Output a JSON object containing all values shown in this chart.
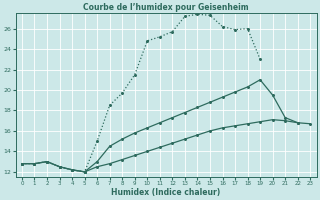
{
  "title": "Courbe de l’humidex pour Geisenheim",
  "xlabel": "Humidex (Indice chaleur)",
  "xlim": [
    -0.5,
    23.5
  ],
  "ylim": [
    11.5,
    27.5
  ],
  "yticks": [
    12,
    14,
    16,
    18,
    20,
    22,
    24,
    26
  ],
  "xticks": [
    0,
    1,
    2,
    3,
    4,
    5,
    6,
    7,
    8,
    9,
    10,
    11,
    12,
    13,
    14,
    15,
    16,
    17,
    18,
    19,
    20,
    21,
    22,
    23
  ],
  "bg_color": "#cce8e8",
  "line_color": "#2e6b5e",
  "grid_color": "#ffffff",
  "line1_x": [
    0,
    1,
    2,
    3,
    4,
    5,
    6,
    7,
    8,
    9,
    10,
    11,
    12,
    13,
    14,
    15,
    16,
    17,
    18,
    19
  ],
  "line1_y": [
    12.8,
    12.8,
    13.0,
    12.5,
    12.2,
    12.0,
    15.0,
    18.5,
    19.7,
    21.5,
    24.8,
    25.2,
    25.7,
    27.2,
    27.4,
    27.3,
    26.2,
    25.9,
    26.0,
    23.0
  ],
  "line2_x": [
    0,
    1,
    2,
    3,
    4,
    5,
    6,
    7,
    8,
    9,
    10,
    11,
    12,
    13,
    14,
    15,
    16,
    17,
    18,
    19,
    20,
    21,
    22
  ],
  "line2_y": [
    12.8,
    12.8,
    13.0,
    12.5,
    12.2,
    12.0,
    13.0,
    14.5,
    15.2,
    15.8,
    16.3,
    16.8,
    17.3,
    17.8,
    18.3,
    18.8,
    19.3,
    19.8,
    20.3,
    21.0,
    19.5,
    17.3,
    16.8
  ],
  "line3_x": [
    0,
    1,
    2,
    3,
    4,
    5,
    6,
    7,
    8,
    9,
    10,
    11,
    12,
    13,
    14,
    15,
    16,
    17,
    18,
    19,
    20,
    21,
    22,
    23
  ],
  "line3_y": [
    12.8,
    12.8,
    13.0,
    12.5,
    12.2,
    12.0,
    12.5,
    12.8,
    13.2,
    13.6,
    14.0,
    14.4,
    14.8,
    15.2,
    15.6,
    16.0,
    16.3,
    16.5,
    16.7,
    16.9,
    17.1,
    17.0,
    16.8,
    16.7
  ]
}
